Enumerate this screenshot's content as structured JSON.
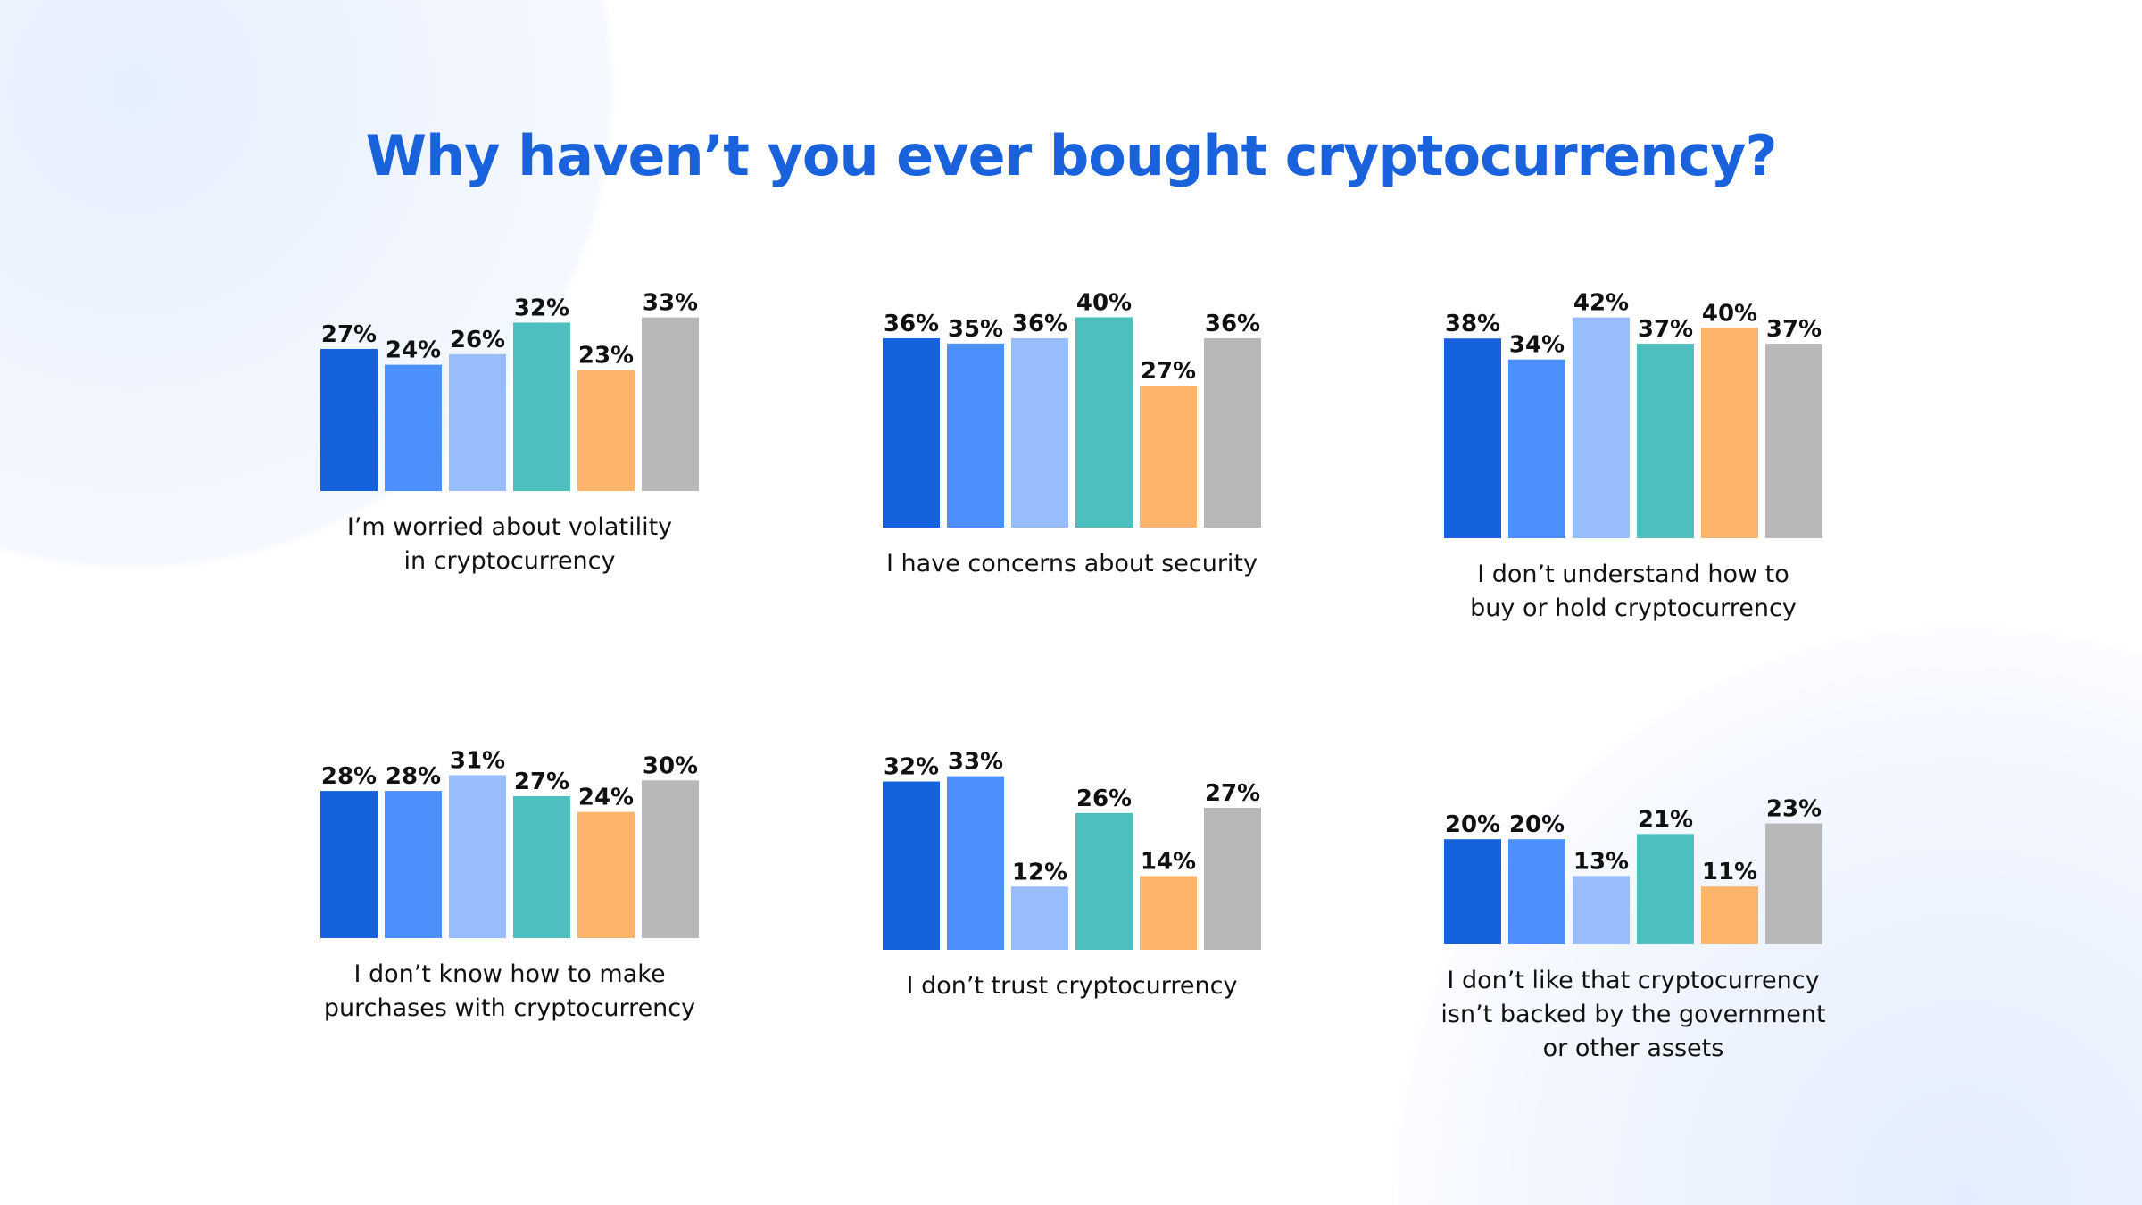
{
  "title": "Why haven’t you ever bought cryptocurrency?",
  "colors": [
    "#1662dd",
    "#4b90fd",
    "#97bdfd",
    "#4cbfbe",
    "#ffb46b",
    "#b8b8b8"
  ],
  "chart_data": [
    {
      "type": "bar",
      "label": [
        "I’m worried about volatility",
        "in cryptocurrency"
      ],
      "values": [
        27,
        24,
        26,
        32,
        23,
        33
      ]
    },
    {
      "type": "bar",
      "label": [
        "I have concerns about security"
      ],
      "values": [
        36,
        35,
        36,
        40,
        27,
        36
      ]
    },
    {
      "type": "bar",
      "label": [
        "I don’t understand how to",
        "buy or hold cryptocurrency"
      ],
      "values": [
        38,
        34,
        42,
        37,
        40,
        37
      ]
    },
    {
      "type": "bar",
      "label": [
        "I don’t know how to make",
        "purchases with cryptocurrency"
      ],
      "values": [
        28,
        28,
        31,
        27,
        24,
        30
      ]
    },
    {
      "type": "bar",
      "label": [
        "I don’t trust cryptocurrency"
      ],
      "values": [
        32,
        33,
        12,
        26,
        14,
        27
      ]
    },
    {
      "type": "bar",
      "label": [
        "I don’t like that cryptocurrency",
        "isn’t backed by the government",
        "or other assets"
      ],
      "values": [
        20,
        20,
        13,
        21,
        11,
        23
      ]
    }
  ]
}
